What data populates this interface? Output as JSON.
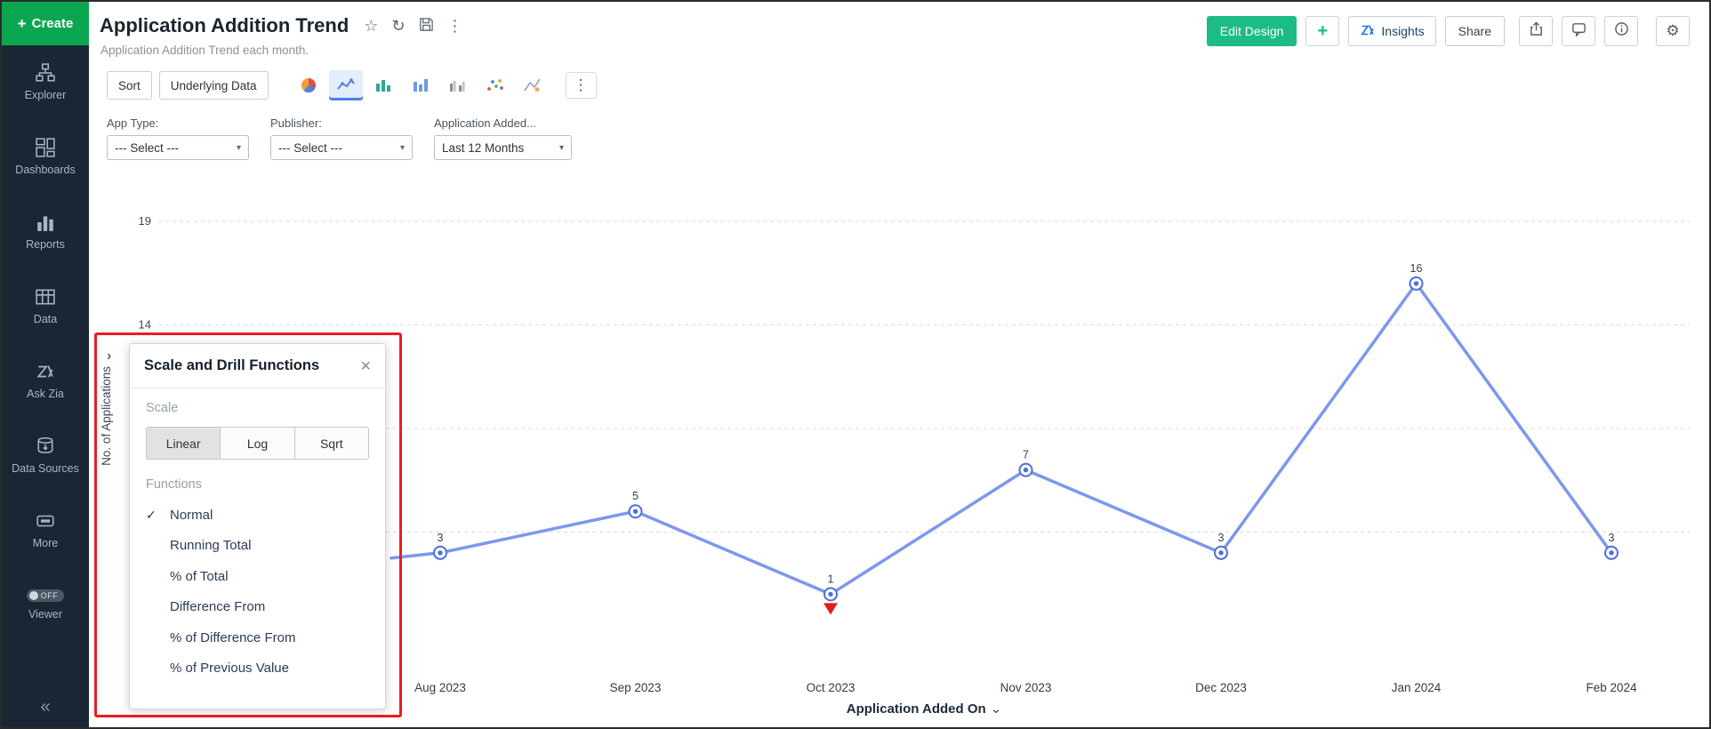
{
  "icons": {
    "plus": "+",
    "star": "☆",
    "refresh": "↻",
    "kebab": "⋮",
    "gear": "⚙",
    "close": "×",
    "check": "✓",
    "caret": "▾",
    "chevron_down": "⌄",
    "expand": "›",
    "collapse": "«"
  },
  "sidebar": {
    "create_label": "Create",
    "items": [
      {
        "label": "Explorer"
      },
      {
        "label": "Dashboards"
      },
      {
        "label": "Reports"
      },
      {
        "label": "Data"
      },
      {
        "label": "Ask Zia"
      },
      {
        "label": "Data Sources"
      },
      {
        "label": "More"
      },
      {
        "label": "Viewer",
        "toggle": "OFF"
      }
    ]
  },
  "header": {
    "title": "Application Addition Trend",
    "subtitle": "Application Addition Trend each month.",
    "actions": {
      "edit_design": "Edit Design",
      "insights": "Insights",
      "share": "Share"
    }
  },
  "toolbar": {
    "sort": "Sort",
    "underlying_data": "Underlying Data"
  },
  "filters": [
    {
      "label": "App Type:",
      "value": "--- Select ---"
    },
    {
      "label": "Publisher:",
      "value": "--- Select ---"
    },
    {
      "label": "Application Added...",
      "value": "Last 12 Months"
    }
  ],
  "popup": {
    "title": "Scale and Drill Functions",
    "scale_label": "Scale",
    "scale_options": [
      "Linear",
      "Log",
      "Sqrt"
    ],
    "scale_selected": "Linear",
    "functions_label": "Functions",
    "functions": [
      "Normal",
      "Running Total",
      "% of Total",
      "Difference From",
      "% of Difference From",
      "% of Previous Value"
    ],
    "functions_selected": "Normal"
  },
  "chart_data": {
    "type": "line",
    "title": "Application Addition Trend",
    "categories": [
      "Aug 2023",
      "Sep 2023",
      "Oct 2023",
      "Nov 2023",
      "Dec 2023",
      "Jan 2024",
      "Feb 2024"
    ],
    "values": [
      3,
      5,
      1,
      7,
      3,
      16,
      3
    ],
    "xlabel": "Application Added On",
    "ylabel": "No. of Applications",
    "y_ticks": [
      19,
      14,
      9,
      4
    ],
    "visible_y_tick_labels": [
      19,
      14
    ],
    "ylim": [
      0,
      19
    ],
    "grid": "dashed-horizontal",
    "legend": "none",
    "line_color": "#7d97ee",
    "marker_color": "#4e6edc",
    "annotations": [
      {
        "category": "Oct 2023",
        "marker": "red-triangle-down",
        "color": "#e01e1e"
      }
    ]
  }
}
